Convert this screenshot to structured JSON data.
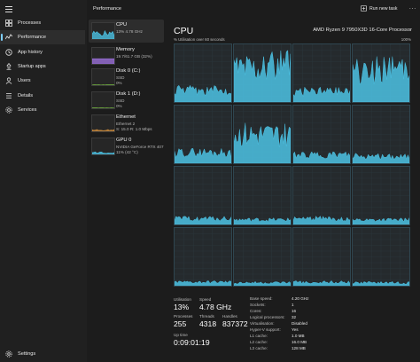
{
  "nav": {
    "items": [
      {
        "label": "Processes",
        "icon": "processes-icon"
      },
      {
        "label": "Performance",
        "icon": "performance-icon"
      },
      {
        "label": "App history",
        "icon": "app-history-icon"
      },
      {
        "label": "Startup apps",
        "icon": "startup-apps-icon"
      },
      {
        "label": "Users",
        "icon": "users-icon"
      },
      {
        "label": "Details",
        "icon": "details-icon"
      },
      {
        "label": "Services",
        "icon": "services-icon"
      }
    ],
    "settings_label": "Settings"
  },
  "header": {
    "title": "Performance",
    "run_new_task": "Run new task",
    "more": "..."
  },
  "perf_list": [
    {
      "title": "CPU",
      "subtitle": "13% 4.78 GHz",
      "subtitle2": "",
      "color": "#4cc2e4"
    },
    {
      "title": "Memory",
      "subtitle": "19.7/61.7 GB (32%)",
      "subtitle2": "",
      "color": "#9a6fd8"
    },
    {
      "title": "Disk 0 (C:)",
      "subtitle": "SSD",
      "subtitle2": "0%",
      "color": "#7bc043"
    },
    {
      "title": "Disk 1 (D:)",
      "subtitle": "SSD",
      "subtitle2": "0%",
      "color": "#7bc043"
    },
    {
      "title": "Ethernet",
      "subtitle": "Ethernet 2",
      "subtitle2": "S: 15.0 R: 1.0 Mbps",
      "color": "#c98a3c"
    },
    {
      "title": "GPU 0",
      "subtitle": "NVIDIA GeForce RTX 407",
      "subtitle2": "11% (42 °C)",
      "color": "#4cc2e4"
    }
  ],
  "cpu": {
    "title": "CPU",
    "model": "AMD Ryzen 9 7950X3D 16-Core Processor",
    "util_label": "% Utilisation over 60 seconds",
    "util_max": "100%",
    "accent": "#4cc2e4",
    "core_levels": [
      [
        0.2,
        0.62,
        0.18,
        0.55
      ],
      [
        0.18,
        0.5,
        0.14,
        0.12
      ],
      [
        0.1,
        0.08,
        0.1,
        0.08
      ],
      [
        0.06,
        0.05,
        0.06,
        0.05
      ]
    ]
  },
  "stats": {
    "utilisation_label": "Utilisation",
    "utilisation": "13%",
    "speed_label": "Speed",
    "speed": "4.78 GHz",
    "processes_label": "Processes",
    "processes": "255",
    "threads_label": "Threads",
    "threads": "4318",
    "handles_label": "Handles",
    "handles": "837372",
    "uptime_label": "Up time",
    "uptime": "0:09:01:19"
  },
  "specs": [
    {
      "label": "Base speed:",
      "value": "4.20 GHz"
    },
    {
      "label": "Sockets:",
      "value": "1"
    },
    {
      "label": "Cores:",
      "value": "16"
    },
    {
      "label": "Logical processors:",
      "value": "32"
    },
    {
      "label": "Virtualisation:",
      "value": "Disabled"
    },
    {
      "label": "Hyper-V support:",
      "value": "Yes"
    },
    {
      "label": "L1 cache:",
      "value": "1.0 MB"
    },
    {
      "label": "L2 cache:",
      "value": "16.0 MB"
    },
    {
      "label": "L3 cache:",
      "value": "128 MB"
    }
  ]
}
